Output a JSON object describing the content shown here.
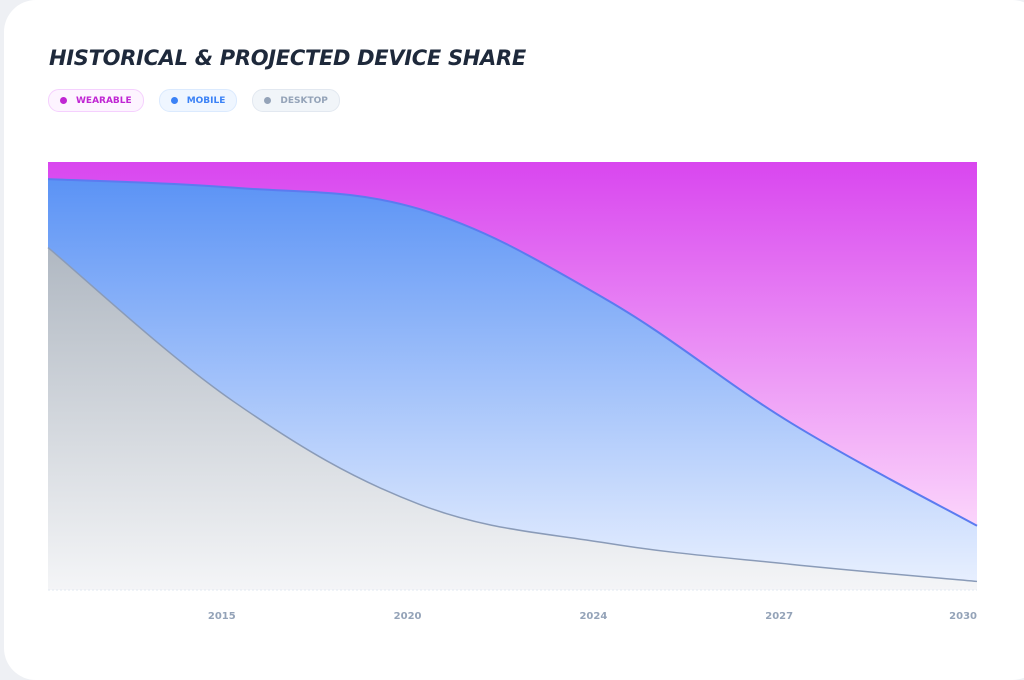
{
  "chart_data": {
    "type": "area",
    "stacked": true,
    "normalized": true,
    "title": "HISTORICAL & PROJECTED DEVICE SHARE",
    "categories": [
      "",
      "2015",
      "2020",
      "2024",
      "2027",
      "2030"
    ],
    "ylim": [
      0,
      100
    ],
    "series": [
      {
        "name": "DESKTOP",
        "color": "#94a3b8",
        "values": [
          80,
          44,
          20,
          11,
          6,
          2
        ]
      },
      {
        "name": "MOBILE",
        "color": "#3b82f6",
        "values": [
          16,
          50,
          69,
          57,
          33,
          13
        ]
      },
      {
        "name": "WEARABLE",
        "color": "#d946ef",
        "values": [
          4,
          6,
          11,
          32,
          61,
          85
        ]
      }
    ],
    "legend": [
      {
        "label": "WEARABLE",
        "color": "#c026d3",
        "bg": "#fdf4ff",
        "border": "#f5d0fe"
      },
      {
        "label": "MOBILE",
        "color": "#3b82f6",
        "bg": "#eff6ff",
        "border": "#dbeafe"
      },
      {
        "label": "DESKTOP",
        "color": "#94a3b8",
        "bg": "#f1f5f9",
        "border": "#e2e8f0"
      }
    ]
  }
}
